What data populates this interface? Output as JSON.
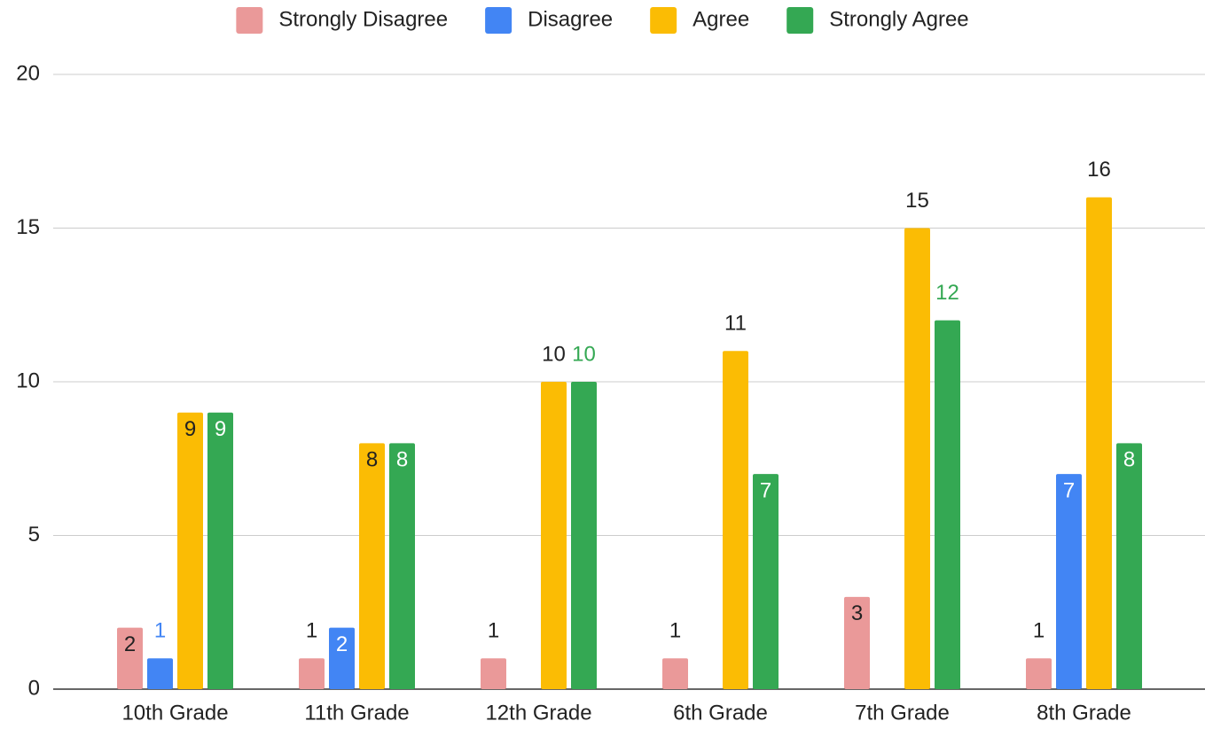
{
  "chart_data": {
    "type": "bar",
    "categories": [
      "10th Grade",
      "11th Grade",
      "12th Grade",
      "6th Grade",
      "7th Grade",
      "8th Grade"
    ],
    "series": [
      {
        "name": "Strongly Disagree",
        "color": "#ea9999",
        "values": [
          2,
          1,
          1,
          1,
          3,
          1
        ]
      },
      {
        "name": "Disagree",
        "color": "#4285f4",
        "values": [
          1,
          2,
          null,
          null,
          null,
          7
        ]
      },
      {
        "name": "Agree",
        "color": "#fbbc04",
        "values": [
          9,
          8,
          10,
          11,
          15,
          16
        ]
      },
      {
        "name": "Strongly Agree",
        "color": "#34a853",
        "values": [
          9,
          8,
          10,
          7,
          12,
          8
        ]
      }
    ],
    "ylim": [
      0,
      20
    ],
    "yticks": [
      0,
      5,
      10,
      15,
      20
    ],
    "grid": true,
    "legend": "top"
  }
}
